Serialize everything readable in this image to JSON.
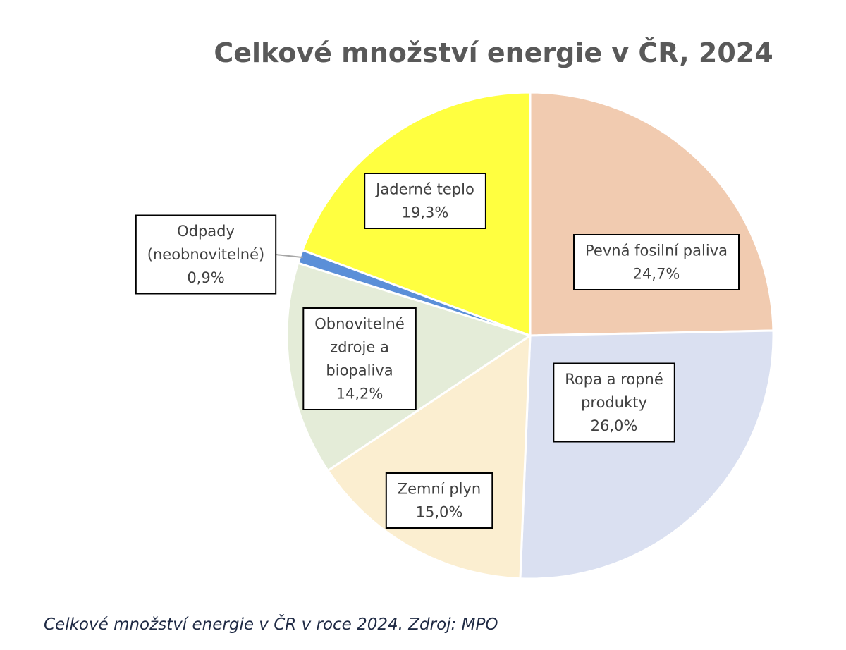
{
  "chart_data": {
    "type": "pie",
    "title": "Celkové množství energie v ČR, 2024",
    "unit": "%",
    "slices": [
      {
        "label": [
          "Pevná fosilní paliva"
        ],
        "value": 24.7,
        "value_text": "24,7%",
        "color": "#f1cbb0"
      },
      {
        "label": [
          "Ropa a ropné",
          "produkty"
        ],
        "value": 26.0,
        "value_text": "26,0%",
        "color": "#dae0f1"
      },
      {
        "label": [
          "Zemní plyn"
        ],
        "value": 15.0,
        "value_text": "15,0%",
        "color": "#fbeed0"
      },
      {
        "label": [
          "Obnovitelné",
          "zdroje a",
          "biopaliva"
        ],
        "value": 14.2,
        "value_text": "14,2%",
        "color": "#e4ecd8"
      },
      {
        "label": [
          "Odpady",
          "(neobnovitelné)"
        ],
        "value": 0.9,
        "value_text": "0,9%",
        "color": "#5b8fd8"
      },
      {
        "label": [
          "Jaderné teplo"
        ],
        "value": 19.3,
        "value_text": "19,3%",
        "color": "#ffff40"
      }
    ]
  },
  "caption": "Celkové množství energie v ČR v roce 2024. Zdroj: MPO"
}
